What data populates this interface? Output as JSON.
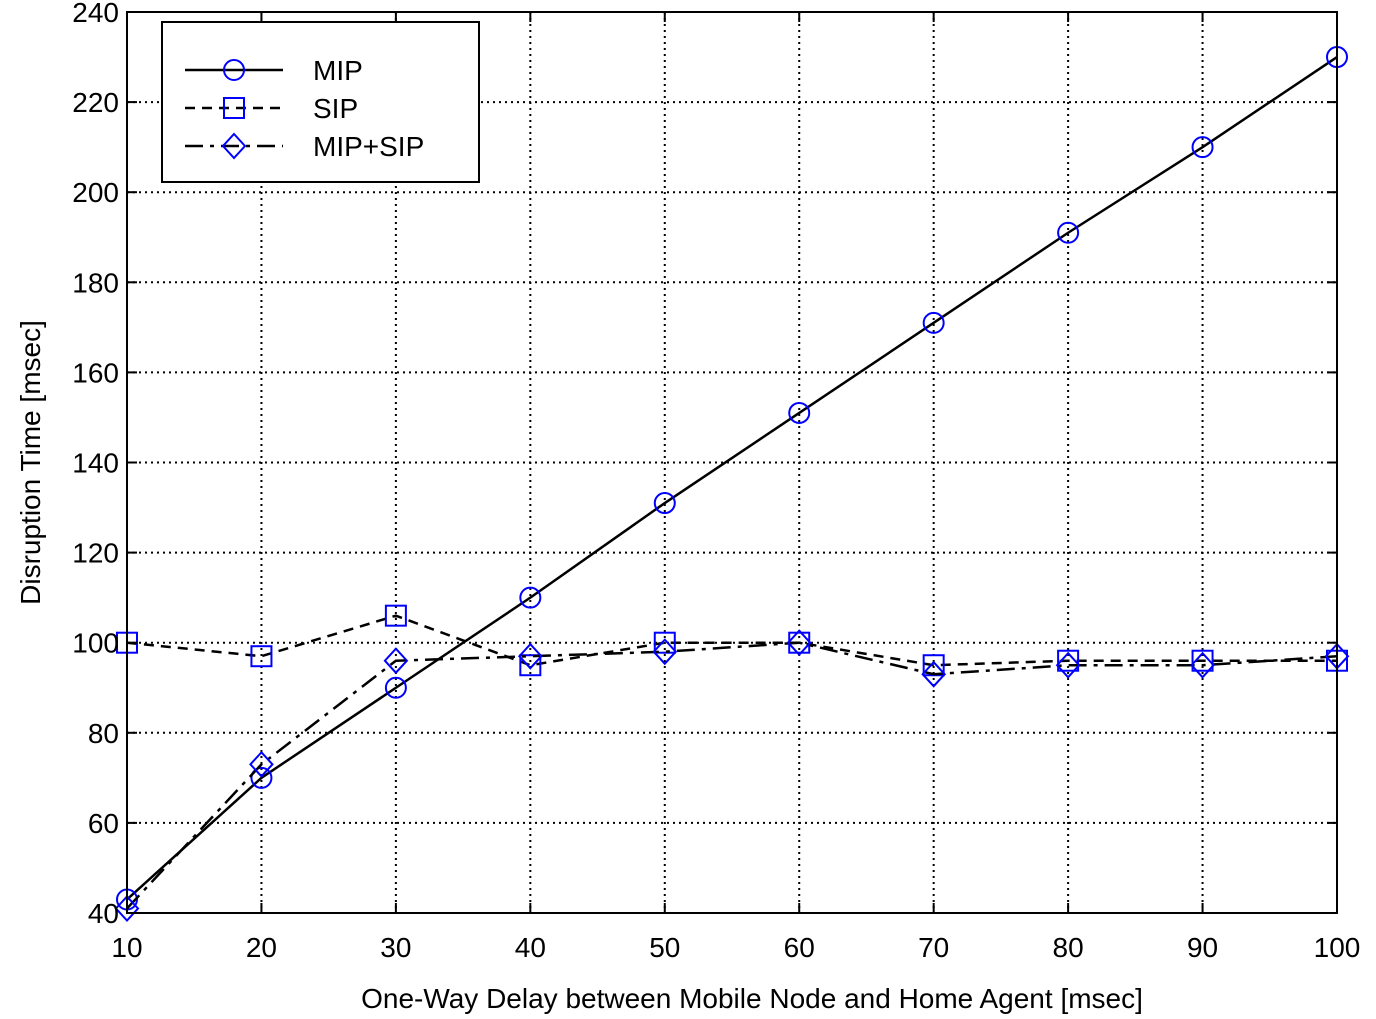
{
  "chart_data": {
    "type": "line",
    "title": "",
    "xlabel": "One-Way Delay between Mobile Node and Home Agent [msec]",
    "ylabel": "Disruption Time [msec]",
    "xlim": [
      10,
      100
    ],
    "ylim": [
      40,
      240
    ],
    "xticks": [
      10,
      20,
      30,
      40,
      50,
      60,
      70,
      80,
      90,
      100
    ],
    "yticks": [
      40,
      60,
      80,
      100,
      120,
      140,
      160,
      180,
      200,
      220,
      240
    ],
    "grid": true,
    "legend_position": "top-left",
    "marker_color": "#0000ff",
    "line_color": "#000000",
    "series": [
      {
        "name": "MIP",
        "linestyle": "solid",
        "marker": "circle",
        "x": [
          10,
          20,
          30,
          40,
          50,
          60,
          70,
          80,
          90,
          100
        ],
        "y": [
          43,
          70,
          90,
          110,
          131,
          151,
          171,
          191,
          210,
          230
        ]
      },
      {
        "name": "SIP",
        "linestyle": "dashed",
        "marker": "square",
        "x": [
          10,
          20,
          30,
          40,
          50,
          60,
          70,
          80,
          90,
          100
        ],
        "y": [
          100,
          97,
          106,
          95,
          100,
          100,
          95,
          96,
          96,
          96
        ]
      },
      {
        "name": "MIP+SIP",
        "linestyle": "dashdot",
        "marker": "diamond",
        "x": [
          10,
          20,
          30,
          40,
          50,
          60,
          70,
          80,
          90,
          100
        ],
        "y": [
          41,
          73,
          96,
          97,
          98,
          100,
          93,
          95,
          95,
          97
        ]
      }
    ]
  }
}
